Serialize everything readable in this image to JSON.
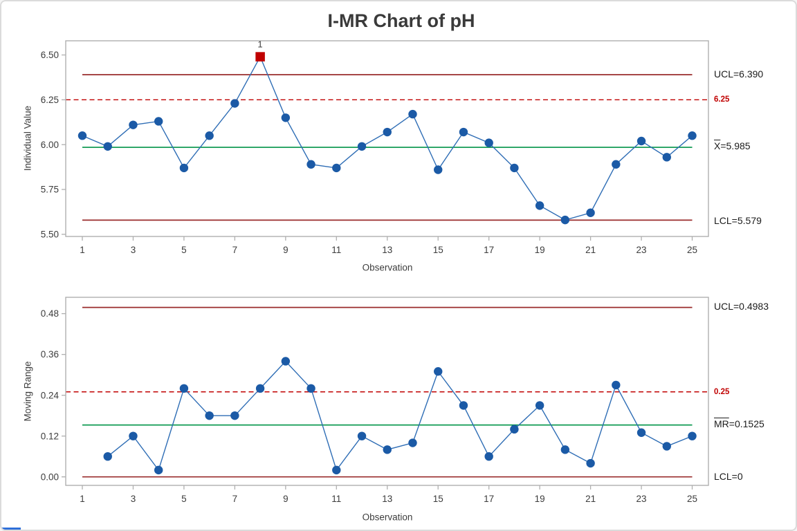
{
  "title": "I-MR Chart of pH",
  "colors": {
    "point_blue": "#1B5AA6",
    "line_blue": "#2E6DB5",
    "limit_line": "#9A2B2B",
    "spec_line_red": "#C00000",
    "center_line_green": "#009347",
    "out_of_control_red": "#C00000",
    "plot_border_gray": "#AFAFAF",
    "text_dark": "#3A3A3A",
    "accent_blue": "#2E6FD9"
  },
  "chart_data": [
    {
      "type": "line",
      "name": "individuals-chart",
      "ylabel": "Individual Value",
      "xlabel": "Observation",
      "x": [
        1,
        2,
        3,
        4,
        5,
        6,
        7,
        8,
        9,
        10,
        11,
        12,
        13,
        14,
        15,
        16,
        17,
        18,
        19,
        20,
        21,
        22,
        23,
        24,
        25
      ],
      "values": [
        6.05,
        5.99,
        6.11,
        6.13,
        5.87,
        6.05,
        6.23,
        6.49,
        6.15,
        5.89,
        5.87,
        5.99,
        6.07,
        6.17,
        5.86,
        6.07,
        6.01,
        5.87,
        5.66,
        5.58,
        5.62,
        5.89,
        6.02,
        5.93,
        6.05
      ],
      "flagged": [
        8
      ],
      "ylim": [
        5.488,
        6.579
      ],
      "yticks": [
        "5.50",
        "5.75",
        "6.00",
        "6.25",
        "6.50"
      ],
      "xticks": [
        1,
        3,
        5,
        7,
        9,
        11,
        13,
        15,
        17,
        19,
        21,
        23,
        25
      ],
      "center_line": 5.985,
      "ucl": 6.39,
      "lcl": 5.579,
      "spec": 6.25,
      "legend_position": "right",
      "grid": false,
      "annotations": {
        "ucl_label": "UCL=6.390",
        "spec_label": "6.25",
        "center_prefix": "X",
        "center_value": "=5.985",
        "lcl_label": "LCL=5.579",
        "flag_label": "1"
      }
    },
    {
      "type": "line",
      "name": "moving-range-chart",
      "ylabel": "Moving Range",
      "xlabel": "Observation",
      "x": [
        2,
        3,
        4,
        5,
        6,
        7,
        8,
        9,
        10,
        11,
        12,
        13,
        14,
        15,
        16,
        17,
        18,
        19,
        20,
        21,
        22,
        23,
        24,
        25
      ],
      "values": [
        0.06,
        0.12,
        0.02,
        0.26,
        0.18,
        0.18,
        0.26,
        0.34,
        0.26,
        0.02,
        0.12,
        0.08,
        0.1,
        0.31,
        0.21,
        0.06,
        0.14,
        0.21,
        0.08,
        0.04,
        0.27,
        0.13,
        0.09,
        0.12
      ],
      "flagged": [],
      "ylim": [
        -0.025,
        0.528
      ],
      "yticks": [
        "0.00",
        "0.12",
        "0.24",
        "0.36",
        "0.48"
      ],
      "xticks": [
        1,
        3,
        5,
        7,
        9,
        11,
        13,
        15,
        17,
        19,
        21,
        23,
        25
      ],
      "center_line": 0.1525,
      "ucl": 0.4983,
      "lcl": 0,
      "spec": 0.25,
      "legend_position": "right",
      "grid": false,
      "annotations": {
        "ucl_label": "UCL=0.4983",
        "spec_label": "0.25",
        "center_prefix": "MR",
        "center_value": "=0.1525",
        "lcl_label": "LCL=0"
      }
    }
  ]
}
